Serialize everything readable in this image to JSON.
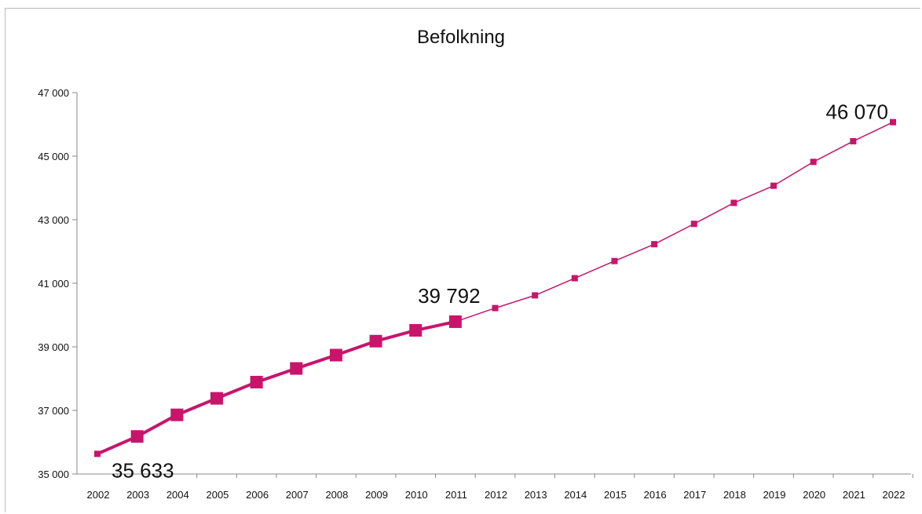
{
  "chart_data": {
    "type": "line",
    "title": "Befolkning",
    "xlabel": "",
    "ylabel": "",
    "x": [
      "2002",
      "2003",
      "2004",
      "2005",
      "2006",
      "2007",
      "2008",
      "2009",
      "2010",
      "2011",
      "2012",
      "2013",
      "2014",
      "2015",
      "2016",
      "2017",
      "2018",
      "2019",
      "2020",
      "2021",
      "2022"
    ],
    "ylim": [
      35000,
      47000
    ],
    "yticks": [
      35000,
      37000,
      39000,
      41000,
      43000,
      45000,
      47000
    ],
    "ytick_labels": [
      "35 000",
      "37 000",
      "39 000",
      "41 000",
      "43 000",
      "45 000",
      "47 000"
    ],
    "grid": false,
    "legend": "none",
    "series": [
      {
        "style": "historical",
        "color": "#c8156b",
        "x": [
          "2002",
          "2003",
          "2004",
          "2005",
          "2006",
          "2007",
          "2008",
          "2009",
          "2010",
          "2011"
        ],
        "values": [
          35633,
          36180,
          36860,
          37380,
          37890,
          38320,
          38740,
          39180,
          39520,
          39792
        ]
      },
      {
        "style": "forecast",
        "color": "#c8156b",
        "x": [
          "2011",
          "2012",
          "2013",
          "2014",
          "2015",
          "2016",
          "2017",
          "2018",
          "2019",
          "2020",
          "2021",
          "2022"
        ],
        "values": [
          39792,
          40220,
          40620,
          41160,
          41700,
          42230,
          42870,
          43530,
          44070,
          44820,
          45470,
          46070
        ]
      }
    ],
    "annotations": [
      {
        "text": "35 633",
        "x": "2002",
        "value": 35633
      },
      {
        "text": "39 792",
        "x": "2011",
        "value": 39792
      },
      {
        "text": "46 070",
        "x": "2022",
        "value": 46070
      }
    ]
  }
}
